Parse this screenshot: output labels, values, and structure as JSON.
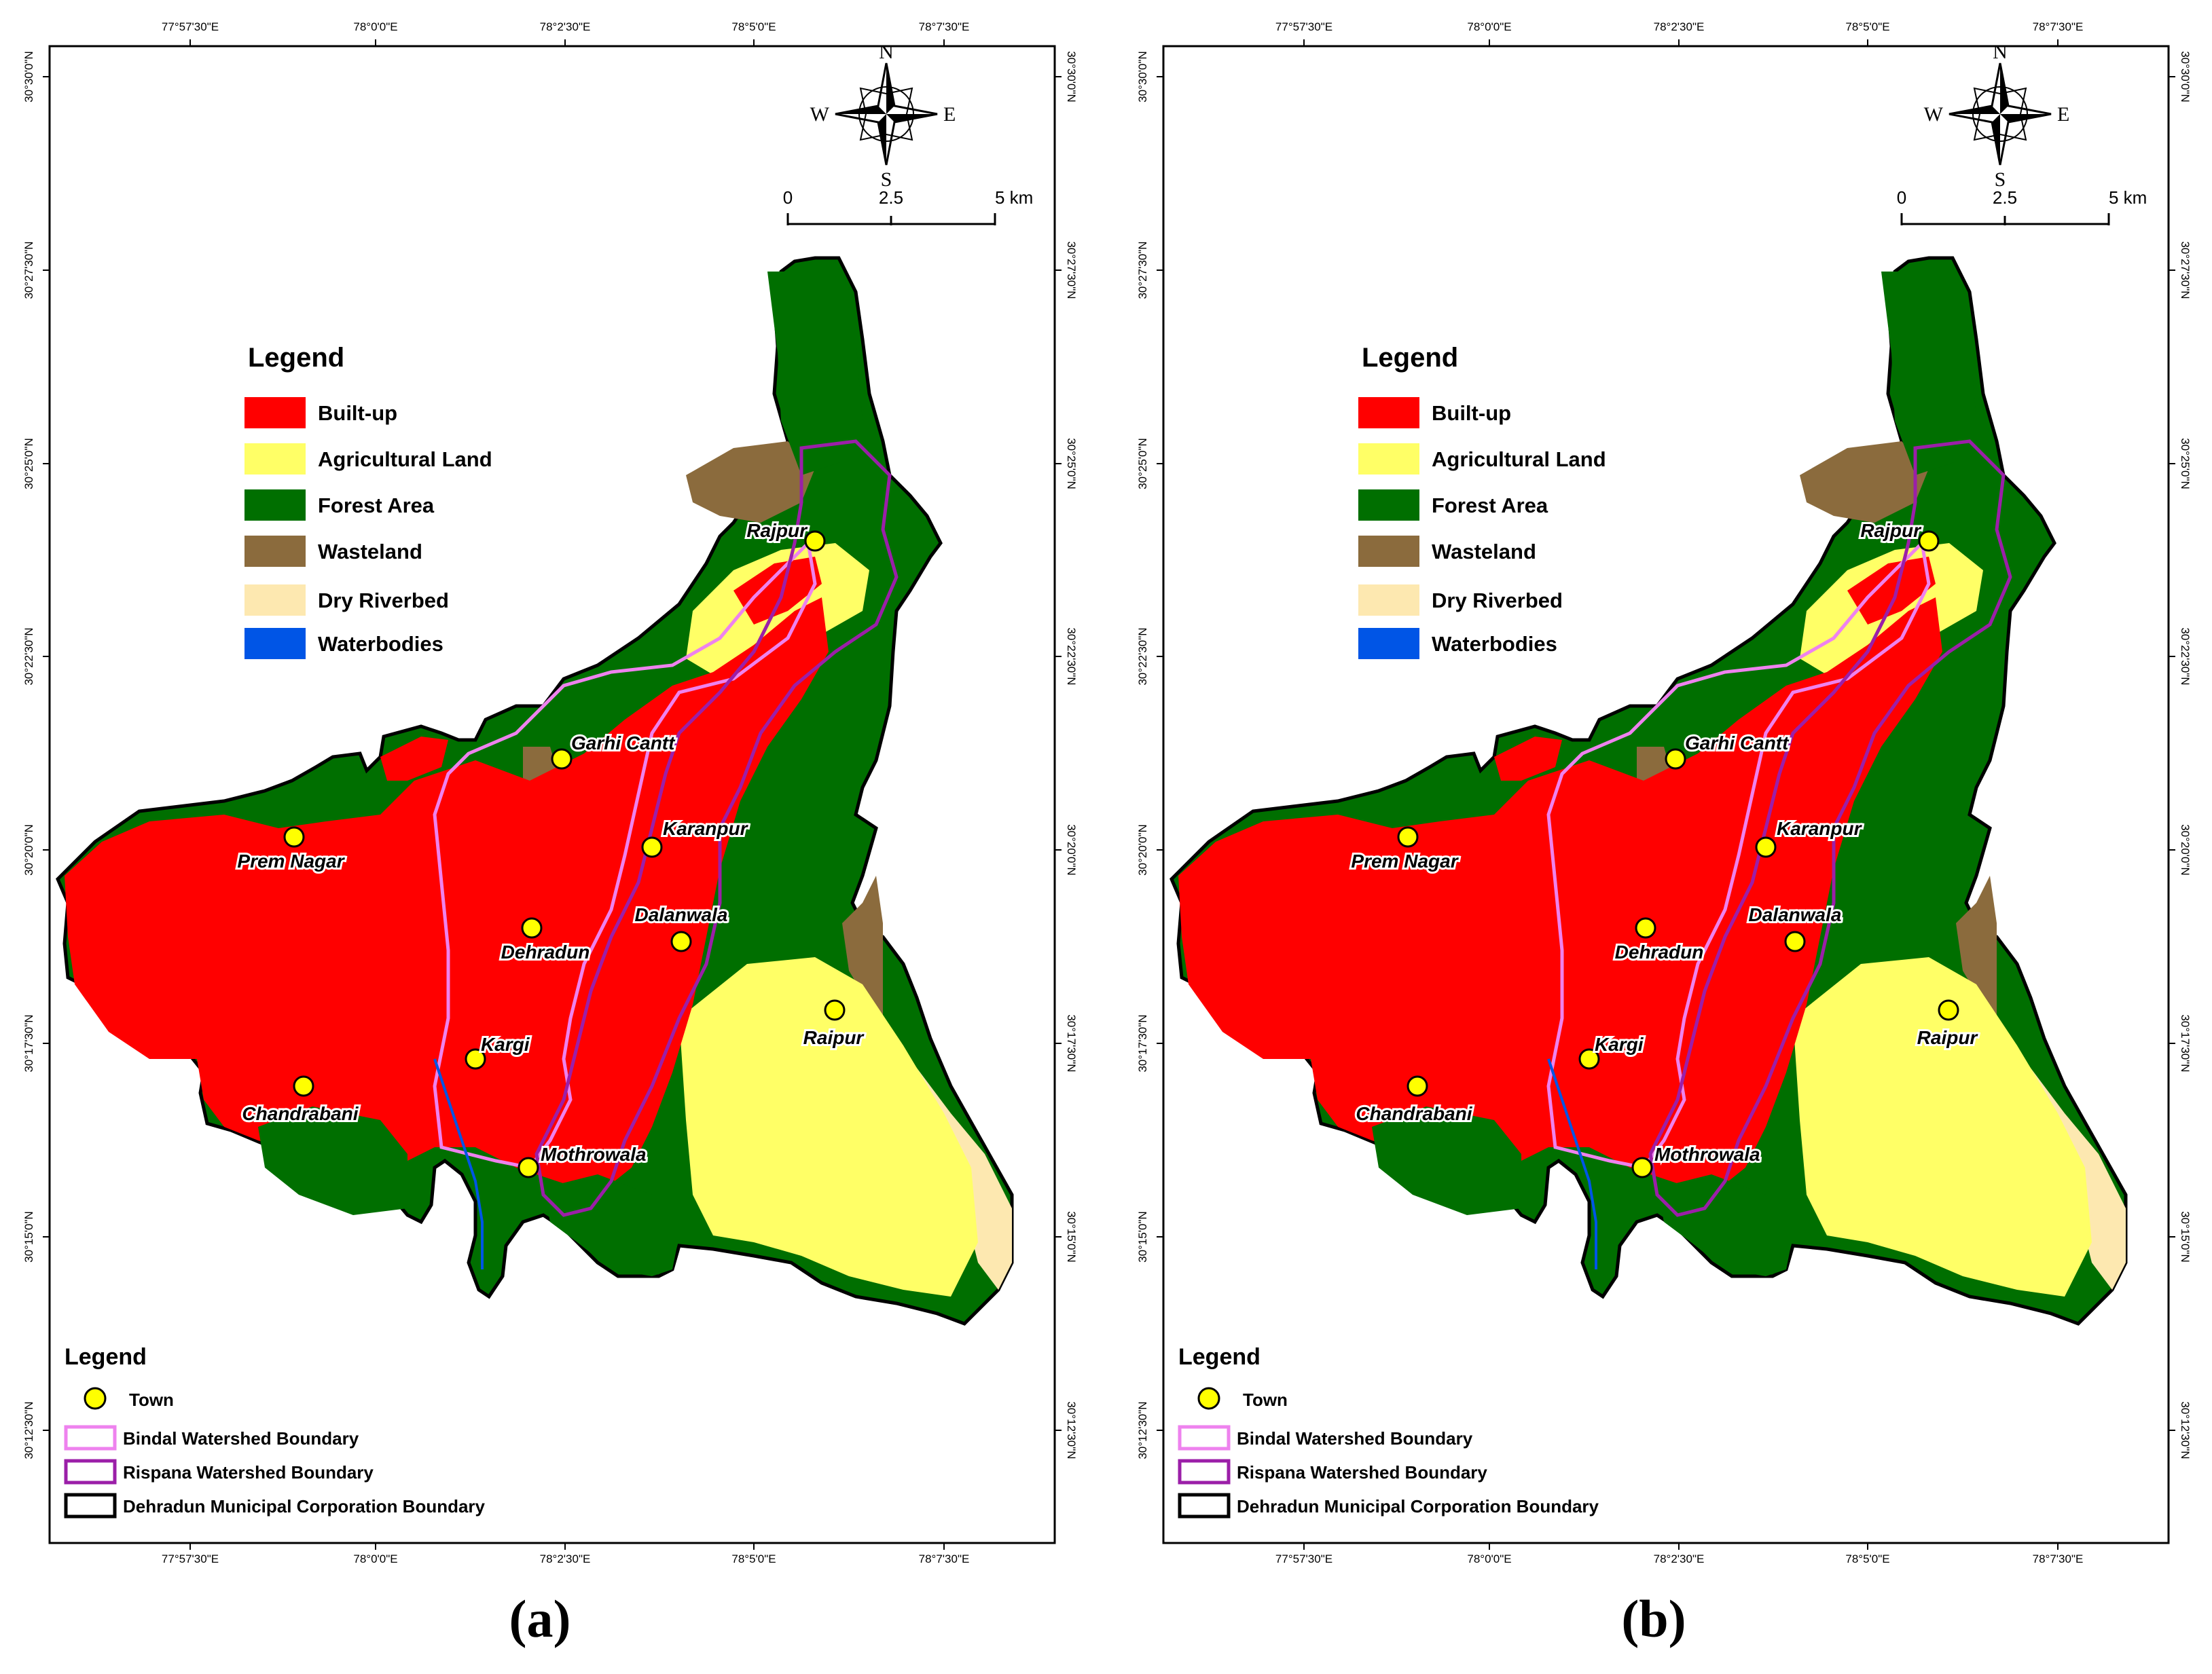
{
  "colors": {
    "built_up": "#ff0000",
    "agricultural": "#ffff66",
    "forest": "#006f00",
    "wasteland": "#8b6b3d",
    "dry_riverbed": "#fde8b0",
    "waterbodies": "#0055e6",
    "town_fill": "#ffff00",
    "bindal": "#ee82ee",
    "rispana": "#9b1fa8",
    "municipal": "#000000"
  },
  "graticule": {
    "top_labels": [
      "77°57'30\"E",
      "78°0'0\"E",
      "78°2'30\"E",
      "78°5'0\"E",
      "78°7'30\"E"
    ],
    "left_labels": [
      "30°30'0\"N",
      "30°27'30\"N",
      "30°25'0\"N",
      "30°22'30\"N",
      "30°20'0\"N",
      "30°17'30\"N",
      "30°15'0\"N",
      "30°12'30\"N"
    ]
  },
  "north_arrow": {
    "n": "N",
    "s": "S",
    "e": "E",
    "w": "W"
  },
  "scale_bar": {
    "labels": [
      "0",
      "2.5",
      "5 km"
    ]
  },
  "landuse_legend": {
    "title": "Legend",
    "items": [
      "Built-up",
      "Agricultural Land",
      "Forest Area",
      "Wasteland",
      "Dry Riverbed",
      "Waterbodies"
    ]
  },
  "boundary_legend": {
    "title": "Legend",
    "town": "Town",
    "bindal": "Bindal Watershed Boundary",
    "rispana": "Rispana Watershed Boundary",
    "municipal": "Dehradun Municipal Corporation Boundary"
  },
  "towns": [
    "Rajpur",
    "Garhi Cantt",
    "Karanpur",
    "Prem Nagar",
    "Dalanwala",
    "Dehradun",
    "Raipur",
    "Kargi",
    "Chandrabani",
    "Mothrowala"
  ],
  "panels": [
    {
      "caption": "(a)"
    },
    {
      "caption": "(b)"
    }
  ]
}
